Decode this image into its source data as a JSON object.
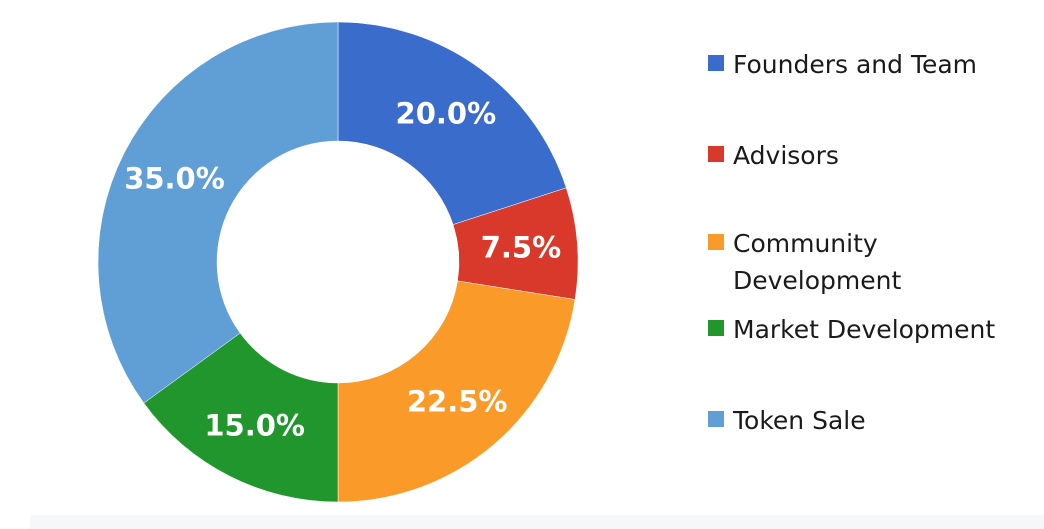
{
  "chart_data": {
    "type": "pie",
    "donut": true,
    "categories": [
      "Founders and Team",
      "Advisors",
      "Community Development",
      "Market Development",
      "Token Sale"
    ],
    "values": [
      20.0,
      7.5,
      22.5,
      15.0,
      35.0
    ],
    "value_labels": [
      "20.0%",
      "7.5%",
      "22.5%",
      "15.0%",
      "35.0%"
    ],
    "colors": [
      "#3a6ccc",
      "#d9392a",
      "#fa9a28",
      "#20962c",
      "#609ed6"
    ],
    "title": "",
    "legend_position": "right",
    "legend": [
      {
        "label": "Founders and Team",
        "color": "#3a6ccc"
      },
      {
        "label": "Advisors",
        "color": "#d9392a"
      },
      {
        "label": "Community Development",
        "color": "#fa9a28"
      },
      {
        "label": "Market Development",
        "color": "#20962c"
      },
      {
        "label": "Token Sale",
        "color": "#609ed6"
      }
    ]
  }
}
